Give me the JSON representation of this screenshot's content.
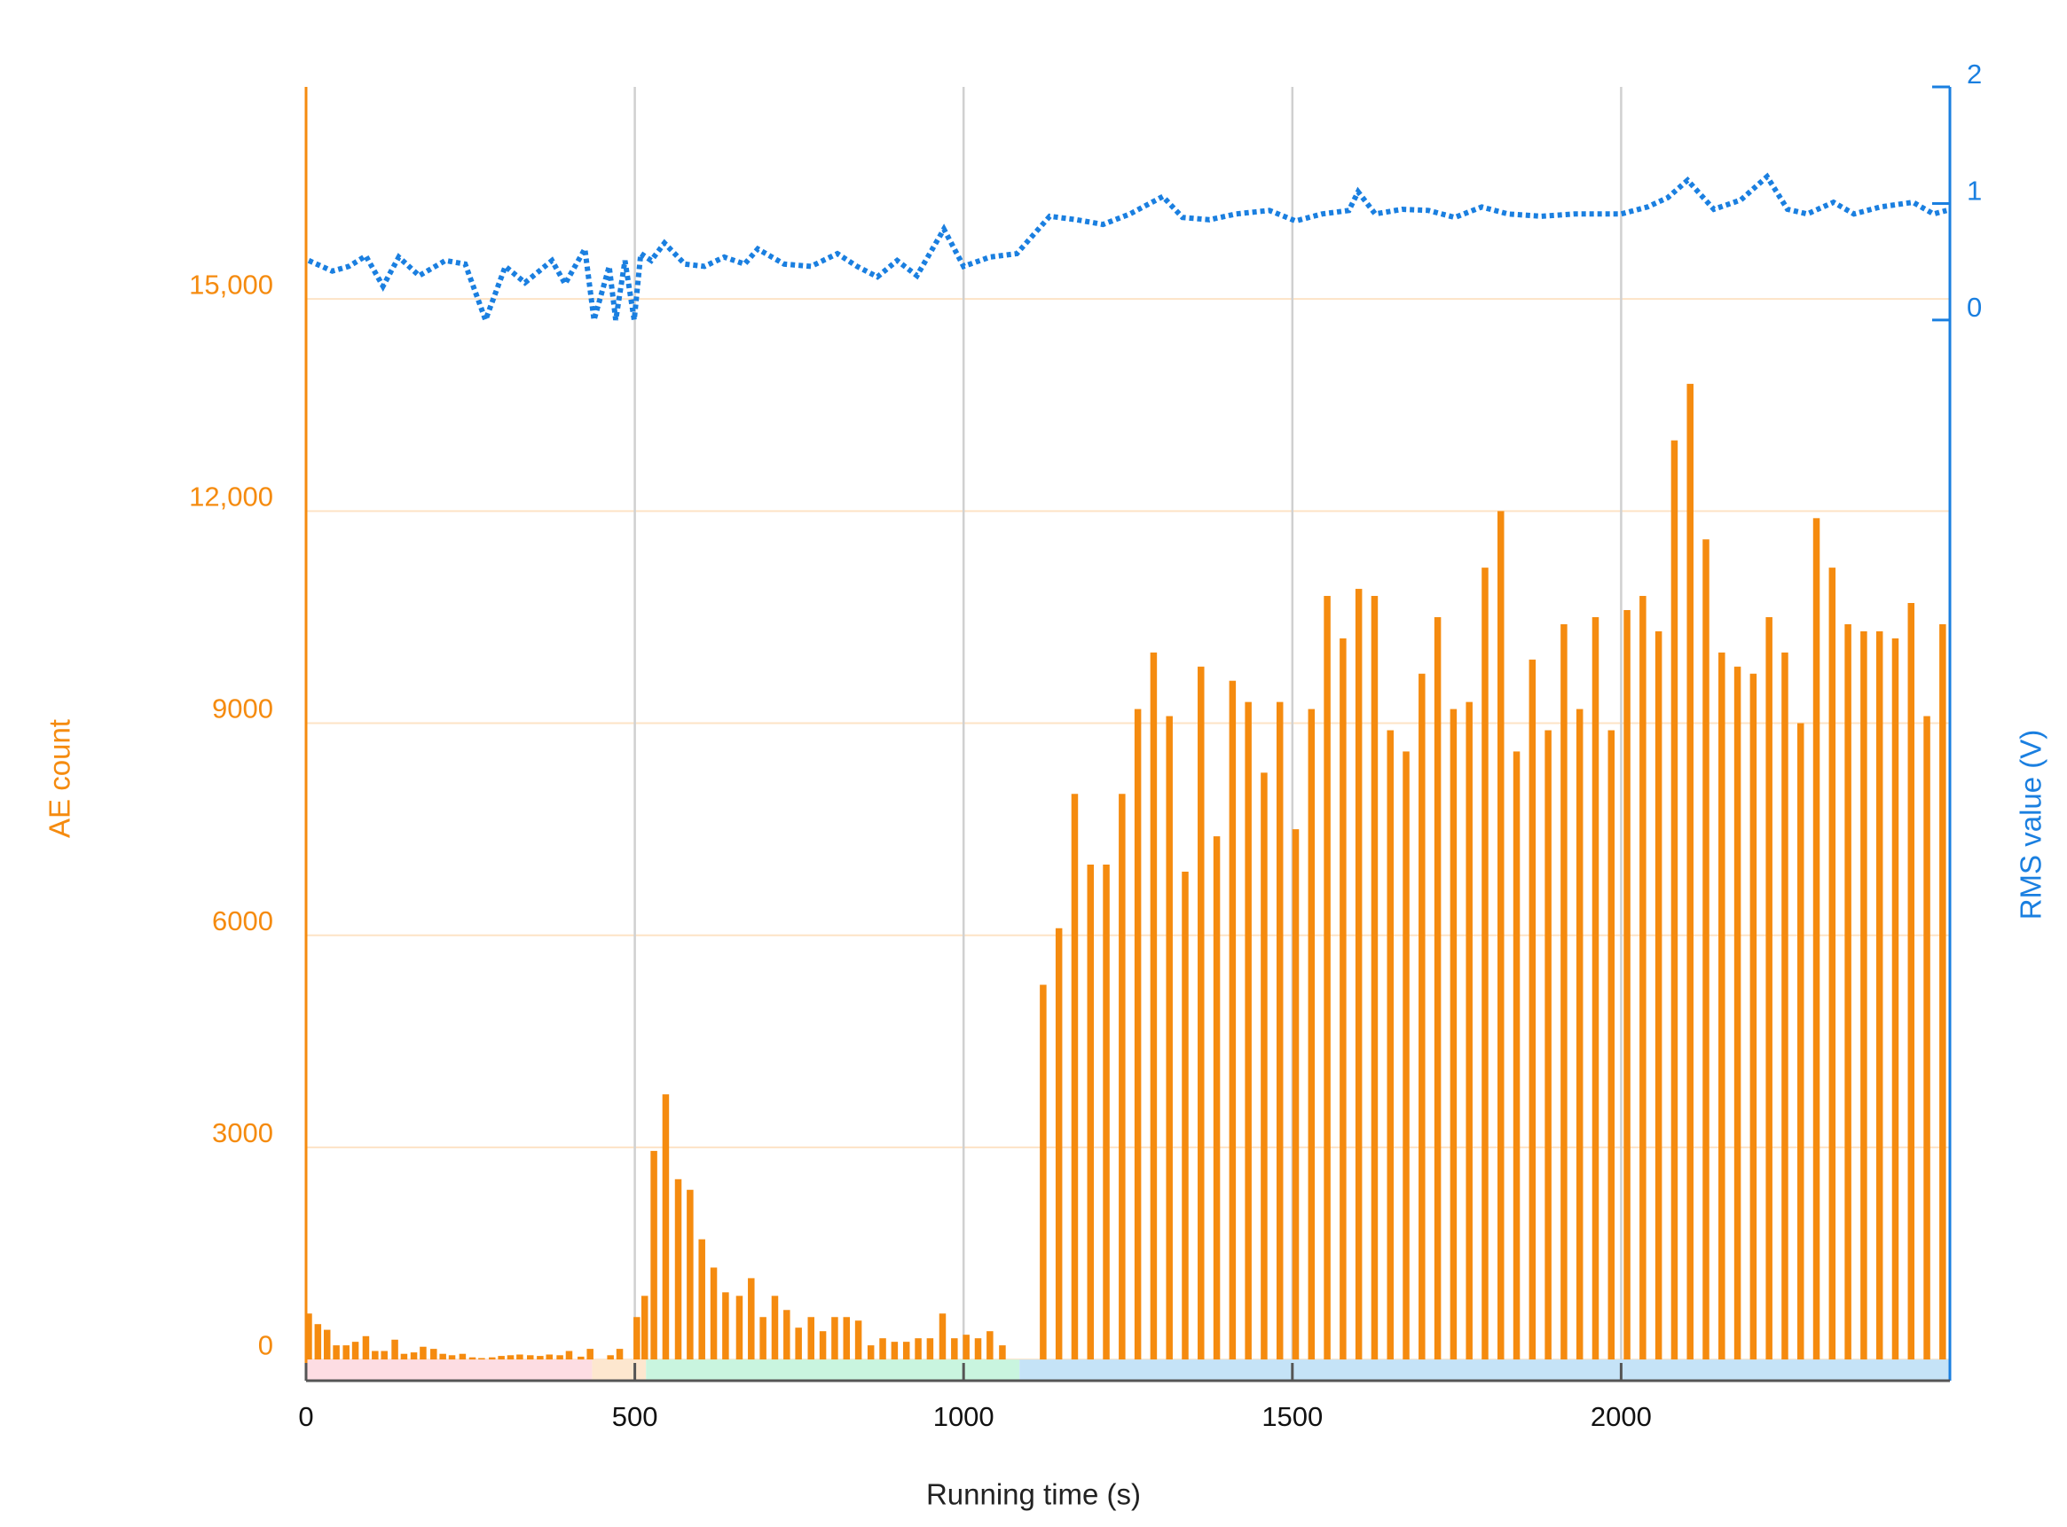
{
  "chart_data": {
    "type": "bar",
    "x_label": "Running time (s)",
    "y_label": "AE count",
    "y2_label": "RMS value (V)",
    "xlim": [
      0,
      2500
    ],
    "xticks": [
      0,
      500,
      1000,
      1500,
      2000
    ],
    "ylim": [
      -300,
      18000
    ],
    "yticks": [
      0,
      3000,
      6000,
      9000,
      {
        "value": 12000,
        "label": "12,000"
      },
      {
        "value": 15000,
        "label": "15,000"
      }
    ],
    "y2lim": [
      -9.1,
      2
    ],
    "y2ticks": [
      0,
      1,
      2
    ],
    "grid": true,
    "bands": [
      {
        "start": 0,
        "end": 435,
        "color": "#fddde3"
      },
      {
        "start": 435,
        "end": 517,
        "color": "#fde7cf"
      },
      {
        "start": 517,
        "end": 1085,
        "color": "#c9f5df"
      },
      {
        "start": 1085,
        "end": 2500,
        "color": "#c5e3f7"
      }
    ],
    "series": [
      {
        "type": "bar",
        "color": "#f58b0f",
        "x": [
          4,
          18,
          32,
          46,
          61,
          75,
          91,
          105,
          119,
          135,
          149,
          164,
          178,
          194,
          208,
          222,
          238,
          253,
          267,
          283,
          297,
          311,
          325,
          341,
          356,
          370,
          386,
          400,
          418,
          432,
          463,
          477,
          503,
          515,
          529,
          547,
          566,
          584,
          602,
          620,
          638,
          659,
          677,
          695,
          713,
          731,
          749,
          768,
          786,
          804,
          822,
          840,
          859,
          877,
          895,
          913,
          931,
          949,
          968,
          986,
          1004,
          1022,
          1040,
          1059,
          1121,
          1145,
          1169,
          1193,
          1217,
          1241,
          1265,
          1289,
          1313,
          1337,
          1361,
          1385,
          1409,
          1433,
          1457,
          1481,
          1505,
          1529,
          1553,
          1577,
          1601,
          1625,
          1649,
          1673,
          1697,
          1721,
          1745,
          1769,
          1793,
          1817,
          1841,
          1865,
          1889,
          1913,
          1937,
          1961,
          1985,
          2009,
          2033,
          2057,
          2081,
          2105,
          2129,
          2153,
          2177,
          2201,
          2225,
          2249,
          2273,
          2297,
          2321,
          2345,
          2369,
          2393,
          2417,
          2441,
          2465,
          2489
        ],
        "values": [
          650,
          500,
          420,
          200,
          200,
          250,
          330,
          120,
          120,
          280,
          80,
          100,
          180,
          150,
          80,
          60,
          80,
          30,
          20,
          30,
          50,
          60,
          70,
          60,
          50,
          70,
          60,
          120,
          40,
          150,
          60,
          150,
          600,
          900,
          2950,
          3750,
          2550,
          2400,
          1700,
          1300,
          950,
          900,
          1150,
          600,
          900,
          700,
          450,
          600,
          400,
          600,
          600,
          550,
          200,
          300,
          250,
          250,
          300,
          300,
          650,
          300,
          350,
          300,
          400,
          200,
          5300,
          6100,
          8000,
          7000,
          7000,
          8000,
          9200,
          10000,
          9100,
          6900,
          9800,
          7400,
          9600,
          9300,
          8300,
          9300,
          7500,
          9200,
          10800,
          10200,
          10900,
          10800,
          8900,
          8600,
          9700,
          10500,
          9200,
          9300,
          11200,
          12000,
          8600,
          9900,
          8900,
          10400,
          9200,
          10500,
          8900,
          10600,
          10800,
          10300,
          13000,
          13800,
          11600,
          10000,
          9800,
          9700,
          10500,
          10000,
          9000,
          11900,
          11200,
          10400,
          10300,
          10300,
          10200,
          10700,
          9100,
          10400
        ]
      },
      {
        "type": "line",
        "axis": "y2",
        "color": "#1a7fe0",
        "line_style": "dotted",
        "x": [
          4,
          40,
          65,
          91,
          117,
          141,
          172,
          212,
          242,
          273,
          303,
          333,
          374,
          394,
          424,
          438,
          461,
          471,
          485,
          499,
          509,
          525,
          545,
          576,
          606,
          636,
          667,
          687,
          727,
          768,
          808,
          838,
          869,
          899,
          929,
          970,
          1000,
          1040,
          1081,
          1131,
          1172,
          1212,
          1253,
          1303,
          1333,
          1374,
          1414,
          1465,
          1505,
          1545,
          1586,
          1600,
          1626,
          1667,
          1707,
          1747,
          1788,
          1828,
          1879,
          1929,
          2000,
          2040,
          2071,
          2101,
          2141,
          2182,
          2222,
          2253,
          2283,
          2323,
          2354,
          2394,
          2444,
          2475,
          2495
        ],
        "values": [
          0.51,
          0.42,
          0.46,
          0.55,
          0.29,
          0.54,
          0.38,
          0.51,
          0.48,
          0.0,
          0.46,
          0.32,
          0.51,
          0.31,
          0.61,
          0.0,
          0.46,
          0.0,
          0.51,
          0.0,
          0.57,
          0.51,
          0.66,
          0.48,
          0.46,
          0.54,
          0.48,
          0.61,
          0.48,
          0.46,
          0.57,
          0.46,
          0.37,
          0.51,
          0.38,
          0.78,
          0.46,
          0.54,
          0.57,
          0.89,
          0.86,
          0.82,
          0.91,
          1.06,
          0.88,
          0.86,
          0.91,
          0.94,
          0.85,
          0.91,
          0.94,
          1.1,
          0.91,
          0.95,
          0.94,
          0.88,
          0.97,
          0.91,
          0.89,
          0.91,
          0.91,
          0.97,
          1.05,
          1.2,
          0.95,
          1.03,
          1.23,
          0.95,
          0.91,
          1.01,
          0.91,
          0.97,
          1.01,
          0.91,
          0.94
        ]
      }
    ]
  }
}
